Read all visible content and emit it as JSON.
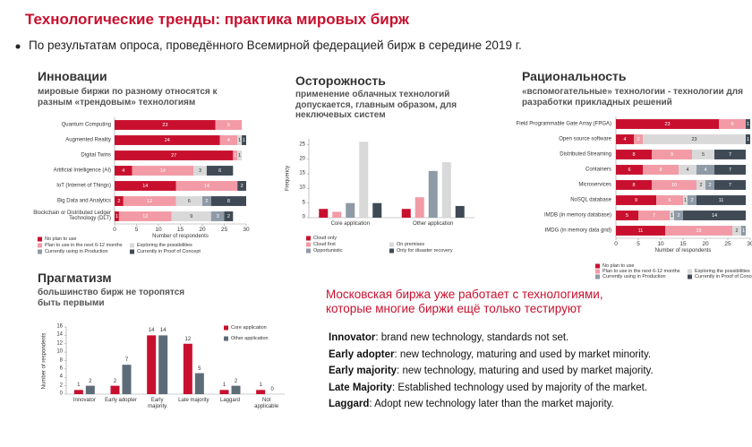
{
  "title": "Технологические тренды: практика мировых бирж",
  "bullet": "По результатам опроса, проведённого Всемирной федерацией бирж в середине 2019 г.",
  "chart_data": [
    {
      "type": "barh",
      "stacked": true,
      "data_labels": true,
      "heading": "Инновации",
      "subtitle": "мировые биржи по разному относятся к разным «трендовым» технологиям",
      "categories": [
        "Quantum Computing",
        "Augmented Reality",
        "Digital Twins",
        "Artificial Intelligence (AI)",
        "IoT (Internet of Things)",
        "Big Data and Analytics",
        "Blockchain or Distributed Ledger Technology (DLT)"
      ],
      "series": [
        {
          "name": "No plan to use",
          "color": "#c8102e",
          "values": [
            23,
            24,
            27,
            4,
            14,
            2,
            1
          ]
        },
        {
          "name": "Plan to use in the next 6-12 months",
          "color": "#f29aa6",
          "values": [
            6,
            4,
            1,
            14,
            14,
            12,
            12
          ]
        },
        {
          "name": "Exploring the possibilities",
          "color": "#d9d9d9",
          "values": [
            0,
            1,
            1,
            3,
            0,
            6,
            9
          ]
        },
        {
          "name": "Currently using in Production",
          "color": "#8e9aa6",
          "values": [
            0,
            0,
            0,
            0,
            0,
            2,
            3
          ]
        },
        {
          "name": "Currently in Proof of Concept",
          "color": "#3f4a55",
          "values": [
            0,
            1,
            0,
            6,
            2,
            8,
            2
          ]
        }
      ],
      "xlim": [
        0,
        30
      ],
      "xticks": [
        0,
        5,
        10,
        15,
        20,
        25,
        30
      ],
      "xlabel": "Number of respondents"
    },
    {
      "type": "bar",
      "data_labels": false,
      "heading": "Осторожность",
      "subtitle": "применение облачных технологий допускается, главным образом, для неключевых систем",
      "categories": [
        "Core application",
        "Other application"
      ],
      "series": [
        {
          "name": "Cloud only",
          "color": "#c8102e",
          "values": [
            3,
            3
          ]
        },
        {
          "name": "Cloud first",
          "color": "#f29aa6",
          "values": [
            2,
            7
          ]
        },
        {
          "name": "Opportunistic",
          "color": "#8e9aa6",
          "values": [
            5,
            16
          ]
        },
        {
          "name": "On premises",
          "color": "#d9d9d9",
          "values": [
            26,
            19
          ]
        },
        {
          "name": "Only for disaster recovery",
          "color": "#3f4a55",
          "values": [
            5,
            4
          ]
        }
      ],
      "ylim": [
        0,
        27
      ],
      "yticks": [
        0,
        5,
        10,
        15,
        20,
        25
      ],
      "ylabel": "Frequency"
    },
    {
      "type": "barh",
      "stacked": true,
      "data_labels": true,
      "heading": "Рациональность",
      "subtitle": "«вспомогательные» технологии - технологии для разработки прикладных решений",
      "categories": [
        "Field Programmable Gate Array (FPGA)",
        "Open source software",
        "Distributed Streaming",
        "Containers",
        "Microservices",
        "NoSQL database",
        "IMDB (in memory database)",
        "IMDG (in memory data grid)"
      ],
      "series": [
        {
          "name": "No plan to use",
          "color": "#c8102e",
          "values": [
            23,
            4,
            8,
            6,
            8,
            9,
            5,
            11
          ]
        },
        {
          "name": "Plan to use in the next 6-12 months",
          "color": "#f29aa6",
          "values": [
            6,
            2,
            9,
            8,
            10,
            6,
            7,
            15
          ]
        },
        {
          "name": "Exploring the possibilities",
          "color": "#d9d9d9",
          "values": [
            0,
            23,
            5,
            4,
            2,
            1,
            1,
            2
          ]
        },
        {
          "name": "Currently using in Production",
          "color": "#8e9aa6",
          "values": [
            0,
            0,
            0,
            4,
            2,
            2,
            2,
            1
          ]
        },
        {
          "name": "Currently in Proof of Concept",
          "color": "#3f4a55",
          "values": [
            1,
            1,
            7,
            7,
            7,
            11,
            14,
            0
          ]
        }
      ],
      "xlim": [
        0,
        30
      ],
      "xticks": [
        0,
        5,
        10,
        15,
        20,
        25,
        30
      ],
      "xlabel": "Number of respondents"
    },
    {
      "type": "bar",
      "data_labels": true,
      "heading": "Прагматизм",
      "subtitle": "большинство бирж не торопятся быть первыми",
      "categories": [
        "Innovator",
        "Early adopter",
        "Early majority",
        "Late majority",
        "Laggard",
        "Not applicable"
      ],
      "series": [
        {
          "name": "Core application",
          "color": "#c8102e",
          "values": [
            1,
            2,
            14,
            12,
            1,
            1
          ]
        },
        {
          "name": "Other application",
          "color": "#5d6b78",
          "values": [
            2,
            7,
            14,
            5,
            2,
            0
          ]
        }
      ],
      "ylim": [
        0,
        16
      ],
      "yticks": [
        0,
        2,
        4,
        6,
        8,
        10,
        12,
        14,
        16
      ],
      "ylabel": "Number of respondents"
    }
  ],
  "callout": "Московская биржа уже работает с технологиями, которые многие биржи ещё только тестируют",
  "definitions": [
    {
      "term": "Innovator",
      "text": ": brand new technology, standards not set."
    },
    {
      "term": "Early adopter",
      "text": ": new technology, maturing and used by market minority."
    },
    {
      "term": "Early majority",
      "text": ": new technology, maturing and used by market majority."
    },
    {
      "term": "Late Majority",
      "text": ": Established technology used by majority of the market."
    },
    {
      "term": "Laggard",
      "text": ": Adopt new technology later than the market majority."
    }
  ]
}
